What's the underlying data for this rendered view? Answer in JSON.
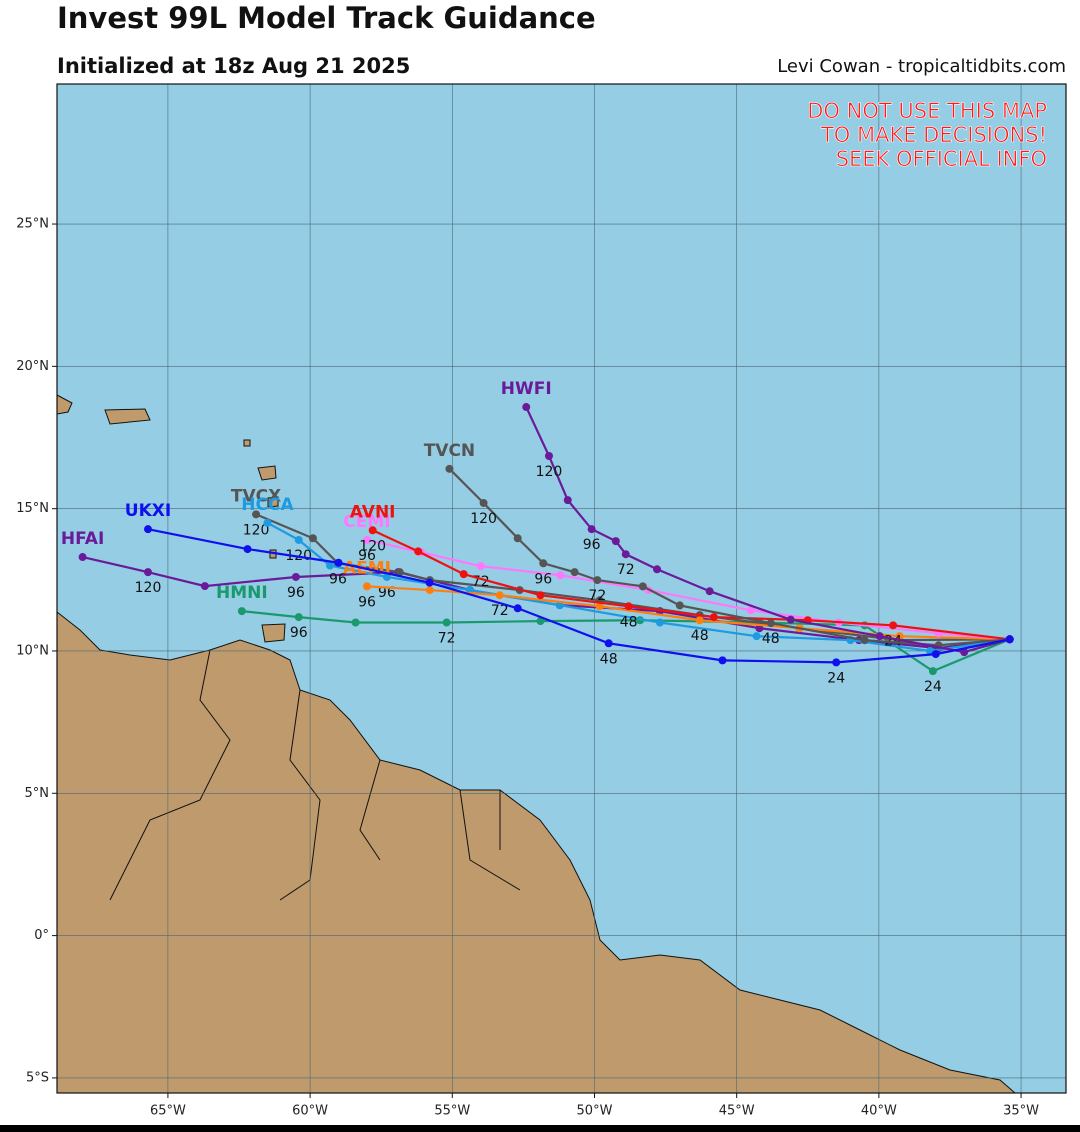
{
  "chart_data": {
    "type": "line",
    "title": "Invest 99L Model Track Guidance",
    "subtitle": "Initialized at 18z Aug 21 2025",
    "credit": "Levi Cowan - tropicaltidbits.com",
    "warning": [
      "DO NOT USE THIS MAP",
      "TO MAKE DECISIONS!",
      "SEEK OFFICIAL INFO"
    ],
    "xlim": [
      -68.9,
      -33.42
    ],
    "ylim": [
      -5.53,
      29.92
    ],
    "xticks": [
      {
        "value": -65,
        "label": "65°W"
      },
      {
        "value": -60,
        "label": "60°W"
      },
      {
        "value": -55,
        "label": "55°W"
      },
      {
        "value": -50,
        "label": "50°W"
      },
      {
        "value": -45,
        "label": "45°W"
      },
      {
        "value": -40,
        "label": "40°W"
      },
      {
        "value": -35,
        "label": "35°W"
      }
    ],
    "yticks": [
      {
        "value": -5,
        "label": "5°S"
      },
      {
        "value": 0,
        "label": "0°"
      },
      {
        "value": 5,
        "label": "5°N"
      },
      {
        "value": 10,
        "label": "10°N"
      },
      {
        "value": 15,
        "label": "15°N"
      },
      {
        "value": 20,
        "label": "20°N"
      },
      {
        "value": 25,
        "label": "25°N"
      }
    ],
    "grid": true,
    "series": [
      {
        "name": "HMNI",
        "color": "#1a9a6c",
        "x": [
          -35.4,
          -38.1,
          -40.5,
          -44.2,
          -48.4,
          -51.9,
          -55.2,
          -58.4,
          -60.4,
          -62.4
        ],
        "values": [
          10.41,
          9.29,
          10.9,
          11.0,
          11.08,
          11.05,
          11.0,
          11.0,
          11.19,
          11.4
        ],
        "hours": [
          null,
          24,
          null,
          null,
          null,
          null,
          72,
          null,
          96,
          null
        ]
      },
      {
        "name": "HFAI",
        "color": "#6a1b9a",
        "x": [
          -35.4,
          -37.9,
          -40.7,
          -44.2,
          -47.7,
          -51.22,
          -54.38,
          -56.9,
          -60.5,
          -63.7,
          -65.7,
          -68.0
        ],
        "values": [
          10.41,
          10.1,
          10.38,
          10.8,
          11.4,
          11.61,
          12.14,
          12.77,
          12.6,
          12.28,
          12.77,
          13.3
        ],
        "hours": [
          null,
          null,
          null,
          null,
          null,
          null,
          null,
          null,
          96,
          null,
          120,
          null
        ]
      },
      {
        "name": "TVCX",
        "color": "#555555",
        "x": [
          -35.4,
          -39.27,
          -42.79,
          -46.3,
          -49.82,
          -52.63,
          -55.79,
          -56.85,
          -59.02,
          -59.9,
          -61.9
        ],
        "values": [
          10.41,
          10.38,
          10.8,
          11.26,
          11.78,
          12.14,
          12.49,
          12.77,
          13.08,
          13.96,
          14.8
        ],
        "hours": [
          null,
          null,
          null,
          null,
          null,
          null,
          null,
          null,
          96,
          null,
          120
        ]
      },
      {
        "name": "HCCA",
        "color": "#1e9be0",
        "x": [
          -35.4,
          -38.2,
          -41.0,
          -44.3,
          -47.7,
          -51.22,
          -54.38,
          -57.3,
          -59.3,
          -60.4,
          -61.5
        ],
        "values": [
          10.41,
          10.0,
          10.38,
          10.52,
          11.0,
          11.61,
          12.14,
          12.6,
          13.0,
          13.9,
          14.5
        ],
        "hours": [
          null,
          null,
          null,
          null,
          null,
          null,
          null,
          96,
          null,
          120,
          null
        ]
      },
      {
        "name": "AEMI",
        "color": "#ff7f0e",
        "x": [
          -35.4,
          -39.27,
          -42.79,
          -46.3,
          -49.82,
          -53.33,
          -55.79,
          -58.0
        ],
        "values": [
          10.41,
          10.52,
          10.8,
          11.08,
          11.57,
          11.96,
          12.14,
          12.27
        ],
        "hours": [
          null,
          null,
          null,
          48,
          null,
          72,
          null,
          96
        ]
      },
      {
        "name": "CEMI",
        "color": "#ff77ff",
        "x": [
          -35.4,
          -37.9,
          -41.4,
          -44.5,
          -48.1,
          -51.2,
          -54.0,
          -56.1,
          -58.0
        ],
        "values": [
          10.41,
          10.62,
          11.0,
          11.43,
          12.14,
          12.66,
          12.98,
          13.47,
          13.9
        ],
        "hours": [
          null,
          null,
          null,
          null,
          null,
          null,
          72,
          null,
          96
        ]
      },
      {
        "name": "AVNI",
        "color": "#ee1111",
        "x": [
          -35.4,
          -39.5,
          -42.5,
          -45.8,
          -48.8,
          -51.9,
          -54.6,
          -56.2,
          -57.8
        ],
        "values": [
          10.41,
          10.9,
          11.08,
          11.19,
          11.57,
          11.96,
          12.7,
          13.5,
          14.24
        ],
        "hours": [
          null,
          24,
          null,
          null,
          48,
          null,
          null,
          null,
          120
        ]
      },
      {
        "name": "TVCN",
        "color": "#555555",
        "x": [
          -35.4,
          -37.9,
          -40.5,
          -43.8,
          -47.0,
          -48.3,
          -49.9,
          -50.7,
          -51.8,
          -52.7,
          -53.9,
          -55.1
        ],
        "values": [
          10.41,
          10.2,
          10.38,
          10.98,
          11.6,
          12.27,
          12.49,
          12.77,
          13.08,
          13.96,
          15.2,
          16.4
        ],
        "hours": [
          null,
          null,
          null,
          48,
          null,
          null,
          72,
          null,
          96,
          null,
          120,
          null
        ]
      },
      {
        "name": "HWFI",
        "color": "#6a1b9a",
        "x": [
          -35.4,
          -37.0,
          -39.97,
          -43.1,
          -45.95,
          -47.8,
          -48.9,
          -49.25,
          -50.1,
          -50.94,
          -51.6,
          -52.4
        ],
        "values": [
          10.41,
          9.96,
          10.52,
          11.1,
          12.1,
          12.87,
          13.4,
          13.86,
          14.28,
          15.3,
          16.85,
          18.57
        ],
        "hours": [
          null,
          null,
          null,
          null,
          null,
          null,
          72,
          null,
          96,
          null,
          120,
          null
        ]
      },
      {
        "name": "UKXI",
        "color": "#1010ee",
        "x": [
          -35.4,
          -38.0,
          -41.5,
          -45.5,
          -49.5,
          -52.7,
          -55.8,
          -59.0,
          -62.2,
          -65.7
        ],
        "values": [
          10.41,
          9.89,
          9.6,
          9.67,
          10.27,
          11.5,
          12.4,
          13.1,
          13.58,
          14.28
        ],
        "hours": [
          null,
          null,
          24,
          null,
          48,
          null,
          null,
          null,
          null,
          null
        ]
      }
    ]
  }
}
